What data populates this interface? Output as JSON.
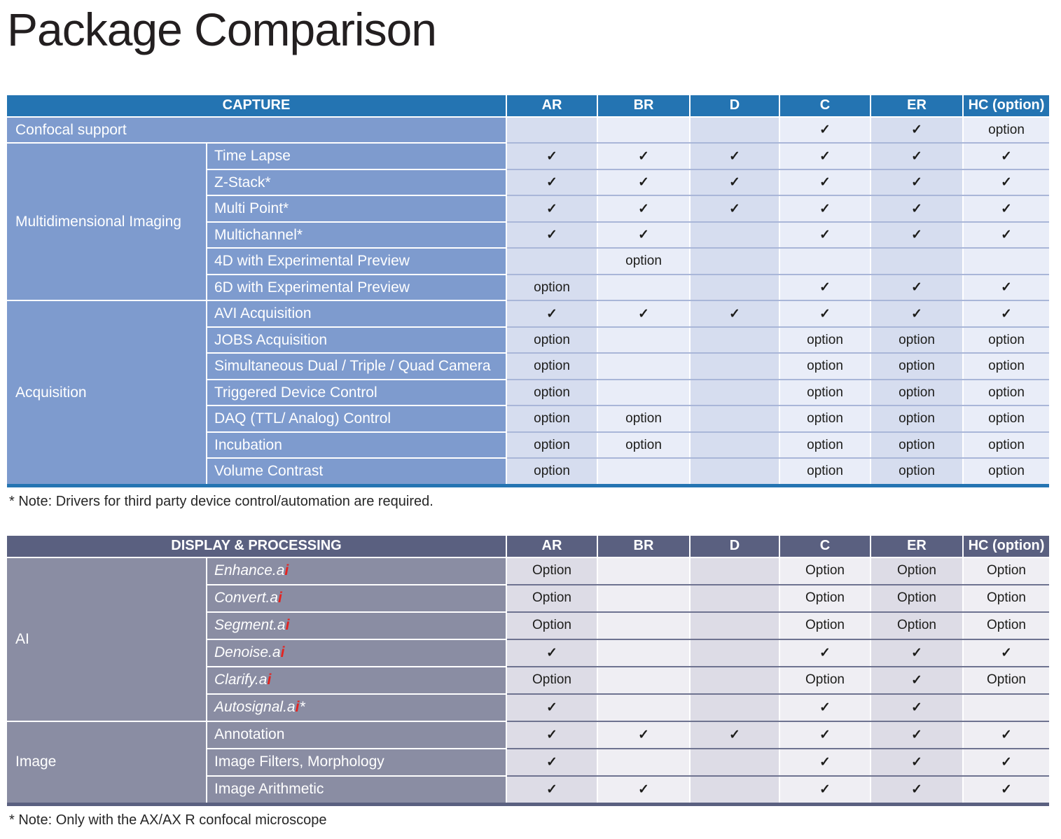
{
  "title": "Package Comparison",
  "columns": [
    "AR",
    "BR",
    "D",
    "C",
    "ER",
    "HC (option)"
  ],
  "check_glyph": "✓",
  "colors": {
    "capture_header_bg": "#2474b2",
    "capture_label_bg": "#7e9bce",
    "display_header_bg": "#5a6080",
    "display_label_bg": "#8a8da3",
    "ai_red": "#e4231f"
  },
  "tables": [
    {
      "header": "CAPTURE",
      "note": "* Note: Drivers for third party device control/automation are required.",
      "rows": [
        {
          "full": true,
          "label": {
            "pre": "Confocal support"
          },
          "cells": [
            "",
            "",
            "",
            "✓",
            "✓",
            "option"
          ]
        },
        {
          "group": "Multidimensional Imaging",
          "group_span": 6,
          "label": {
            "pre": "Time Lapse"
          },
          "cells": [
            "✓",
            "✓",
            "✓",
            "✓",
            "✓",
            "✓"
          ]
        },
        {
          "label": {
            "pre": "Z-Stack*"
          },
          "cells": [
            "✓",
            "✓",
            "✓",
            "✓",
            "✓",
            "✓"
          ]
        },
        {
          "label": {
            "pre": "Multi Point*"
          },
          "cells": [
            "✓",
            "✓",
            "✓",
            "✓",
            "✓",
            "✓"
          ]
        },
        {
          "label": {
            "pre": "Multichannel*"
          },
          "cells": [
            "✓",
            "✓",
            "",
            "✓",
            "✓",
            "✓"
          ]
        },
        {
          "label": {
            "pre": "4D with Experimental Preview"
          },
          "cells": [
            "",
            "option",
            "",
            "",
            "",
            ""
          ]
        },
        {
          "label": {
            "pre": "6D with Experimental Preview"
          },
          "cells": [
            "option",
            "",
            "",
            "✓",
            "✓",
            "✓"
          ]
        },
        {
          "group": "Acquisition",
          "group_span": 7,
          "label": {
            "pre": "AVI Acquisition"
          },
          "cells": [
            "✓",
            "✓",
            "✓",
            "✓",
            "✓",
            "✓"
          ]
        },
        {
          "label": {
            "pre": "JOBS Acquisition"
          },
          "cells": [
            "option",
            "",
            "",
            "option",
            "option",
            "option"
          ]
        },
        {
          "label": {
            "pre": "Simultaneous Dual / Triple / Quad Camera"
          },
          "cells": [
            "option",
            "",
            "",
            "option",
            "option",
            "option"
          ]
        },
        {
          "label": {
            "pre": "Triggered Device Control"
          },
          "cells": [
            "option",
            "",
            "",
            "option",
            "option",
            "option"
          ]
        },
        {
          "label": {
            "pre": "DAQ (TTL/ Analog) Control"
          },
          "cells": [
            "option",
            "option",
            "",
            "option",
            "option",
            "option"
          ]
        },
        {
          "label": {
            "pre": "Incubation"
          },
          "cells": [
            "option",
            "option",
            "",
            "option",
            "option",
            "option"
          ]
        },
        {
          "label": {
            "pre": "Volume Contrast"
          },
          "cells": [
            "option",
            "",
            "",
            "option",
            "option",
            "option"
          ]
        }
      ]
    },
    {
      "header": "DISPLAY & PROCESSING",
      "note": "* Note: Only with the AX/AX R confocal microscope",
      "rows": [
        {
          "group": "AI",
          "group_span": 6,
          "italic": true,
          "label": {
            "pre": "Enhance.a",
            "red": "i"
          },
          "cells": [
            "Option",
            "",
            "",
            "Option",
            "Option",
            "Option"
          ]
        },
        {
          "italic": true,
          "label": {
            "pre": "Convert.a",
            "red": "i"
          },
          "cells": [
            "Option",
            "",
            "",
            "Option",
            "Option",
            "Option"
          ]
        },
        {
          "italic": true,
          "label": {
            "pre": "Segment.a",
            "red": "i"
          },
          "cells": [
            "Option",
            "",
            "",
            "Option",
            "Option",
            "Option"
          ]
        },
        {
          "italic": true,
          "label": {
            "pre": "Denoise.a",
            "red": "i"
          },
          "cells": [
            "✓",
            "",
            "",
            "✓",
            "✓",
            "✓"
          ]
        },
        {
          "italic": true,
          "label": {
            "pre": "Clarify.a",
            "red": "i"
          },
          "cells": [
            "Option",
            "",
            "",
            "Option",
            "✓",
            "Option"
          ]
        },
        {
          "italic": true,
          "label": {
            "pre": "Autosignal.a",
            "red": "i",
            "post": "*"
          },
          "cells": [
            "✓",
            "",
            "",
            "✓",
            "✓",
            ""
          ]
        },
        {
          "group": "Image",
          "group_span": 3,
          "label": {
            "pre": "Annotation"
          },
          "cells": [
            "✓",
            "✓",
            "✓",
            "✓",
            "✓",
            "✓"
          ]
        },
        {
          "label": {
            "pre": "Image Filters, Morphology"
          },
          "cells": [
            "✓",
            "",
            "",
            "✓",
            "✓",
            "✓"
          ]
        },
        {
          "label": {
            "pre": "Image Arithmetic"
          },
          "cells": [
            "✓",
            "✓",
            "",
            "✓",
            "✓",
            "✓"
          ]
        }
      ]
    }
  ]
}
